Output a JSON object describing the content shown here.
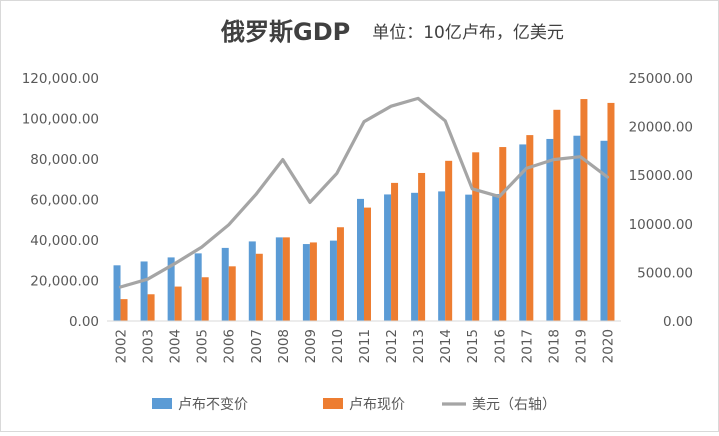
{
  "chart_data": {
    "type": "bar",
    "title": "俄罗斯GDP",
    "subtitle": "单位：10亿卢布，亿美元",
    "categories": [
      "2002",
      "2003",
      "2004",
      "2005",
      "2006",
      "2007",
      "2008",
      "2009",
      "2010",
      "2011",
      "2012",
      "2013",
      "2014",
      "2015",
      "2016",
      "2017",
      "2018",
      "2019",
      "2020"
    ],
    "series": [
      {
        "name": "卢布不变价",
        "kind": "bar",
        "axis": "left",
        "color": "#5b9bd5",
        "values": [
          27500,
          29400,
          31400,
          33400,
          36100,
          39300,
          41300,
          38000,
          39700,
          60300,
          62500,
          63300,
          64000,
          62400,
          62700,
          87200,
          89900,
          91500,
          89000
        ]
      },
      {
        "name": "卢布现价",
        "kind": "bar",
        "axis": "left",
        "color": "#ed7d31",
        "values": [
          10800,
          13200,
          17000,
          21600,
          27000,
          33200,
          41300,
          38800,
          46300,
          56000,
          68200,
          73100,
          79100,
          83300,
          85900,
          91800,
          104300,
          109600,
          107700
        ]
      },
      {
        "name": "美元（右轴）",
        "kind": "line",
        "axis": "right",
        "color": "#a5a5a5",
        "values": [
          3500,
          4300,
          5900,
          7600,
          9900,
          13000,
          16600,
          12200,
          15200,
          20500,
          22100,
          22900,
          20600,
          13600,
          12800,
          15700,
          16600,
          16900,
          14800
        ]
      }
    ],
    "left_axis": {
      "min": 0,
      "max": 120000,
      "step": 20000,
      "tick_labels": [
        "0.00",
        "20,000.00",
        "40,000.00",
        "60,000.00",
        "80,000.00",
        "100,000.00",
        "120,000.00"
      ]
    },
    "right_axis": {
      "min": 0,
      "max": 25000,
      "step": 5000,
      "tick_labels": [
        "0.00",
        "5000.00",
        "10000.00",
        "15000.00",
        "20000.00",
        "25000.00"
      ]
    },
    "grid": false,
    "legend_position": "bottom"
  }
}
